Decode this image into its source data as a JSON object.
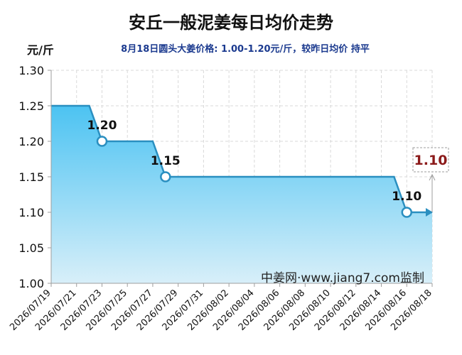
{
  "chart_data": {
    "type": "area",
    "title": "安丘一般泥姜每日均价走势",
    "subtitle": "8月18日圆头大姜价格: 1.00-1.20元/斤，较昨日均价 持平",
    "ylabel": "元/斤",
    "watermark": "中姜网·www.jiang7.com监制",
    "ylim": [
      1.0,
      1.3
    ],
    "yticks": [
      "1.30",
      "1.25",
      "1.20",
      "1.15",
      "1.10",
      "1.05",
      "1.00"
    ],
    "x_start": "2026/07/19",
    "x_end": "2026/08/18",
    "xticks": [
      "2026/07/19",
      "2026/07/21",
      "2026/07/23",
      "2026/07/25",
      "2026/07/27",
      "2026/07/29",
      "2026/07/31",
      "2026/08/02",
      "2026/08/04",
      "2026/08/06",
      "2026/08/08",
      "2026/08/10",
      "2026/08/12",
      "2026/08/14",
      "2026/08/16",
      "2026/08/18"
    ],
    "series": [
      {
        "points": [
          {
            "x": "2026/07/19",
            "y": 1.25
          },
          {
            "x": "2026/07/22",
            "y": 1.25
          },
          {
            "x": "2026/07/23",
            "y": 1.2
          },
          {
            "x": "2026/07/27",
            "y": 1.2
          },
          {
            "x": "2026/07/28",
            "y": 1.15
          },
          {
            "x": "2026/08/15",
            "y": 1.15
          },
          {
            "x": "2026/08/16",
            "y": 1.1
          },
          {
            "x": "2026/08/18",
            "y": 1.1
          }
        ]
      }
    ],
    "data_labels": [
      {
        "x": "2026/07/23",
        "y": 1.2,
        "text": "1.20"
      },
      {
        "x": "2026/07/28",
        "y": 1.15,
        "text": "1.15"
      },
      {
        "x": "2026/08/16",
        "y": 1.1,
        "text": "1.10"
      }
    ],
    "current_value": {
      "x": "2026/08/18",
      "y": 1.1,
      "text": "1.10"
    },
    "colors": {
      "line": "#2a8fc0",
      "fill_top": "#4cc3f2",
      "fill_bottom": "#d8eff9",
      "title": "#111111",
      "subtitle": "#1b3a8f",
      "current_value": "#8b1a1a",
      "watermark": "#222222",
      "grid": "#d9d9d9"
    },
    "grid": true
  }
}
